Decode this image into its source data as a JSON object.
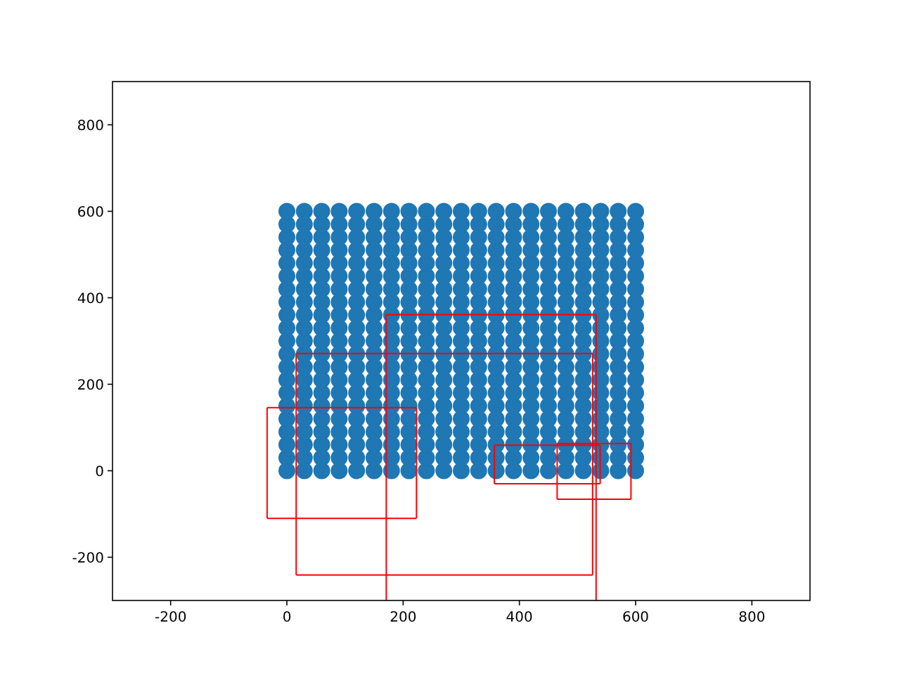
{
  "chart_data": {
    "type": "scatter",
    "xlim": [
      -300,
      900
    ],
    "ylim": [
      -300,
      900
    ],
    "xticks": [
      -200,
      0,
      200,
      400,
      600,
      800
    ],
    "yticks": [
      -200,
      0,
      200,
      400,
      600,
      800
    ],
    "grid": false,
    "marker": "circle",
    "series": [
      {
        "color": "#1f77b4",
        "x": [
          0,
          30,
          60,
          90,
          120,
          150,
          180,
          210,
          240,
          270,
          300,
          330,
          360,
          390,
          420,
          450,
          480,
          510,
          540,
          570,
          600
        ],
        "values": [
          0,
          0,
          0,
          0,
          0,
          0,
          0,
          0,
          0,
          0,
          0,
          0,
          0,
          0,
          0,
          0,
          0,
          0,
          0,
          0,
          0
        ]
      },
      {
        "color": "#1f77b4",
        "x": [
          0,
          30,
          60,
          90,
          120,
          150,
          180,
          210,
          240,
          270,
          300,
          330,
          360,
          390,
          420,
          450,
          480,
          510,
          540,
          570,
          600
        ],
        "values": [
          30,
          30,
          30,
          30,
          30,
          30,
          30,
          30,
          30,
          30,
          30,
          30,
          30,
          30,
          30,
          30,
          30,
          30,
          30,
          30,
          30
        ]
      },
      {
        "color": "#1f77b4",
        "x": [
          0,
          30,
          60,
          90,
          120,
          150,
          180,
          210,
          240,
          270,
          300,
          330,
          360,
          390,
          420,
          450,
          480,
          510,
          540,
          570,
          600
        ],
        "values": [
          60,
          60,
          60,
          60,
          60,
          60,
          60,
          60,
          60,
          60,
          60,
          60,
          60,
          60,
          60,
          60,
          60,
          60,
          60,
          60,
          60
        ]
      },
      {
        "color": "#1f77b4",
        "x": [
          0,
          30,
          60,
          90,
          120,
          150,
          180,
          210,
          240,
          270,
          300,
          330,
          360,
          390,
          420,
          450,
          480,
          510,
          540,
          570,
          600
        ],
        "values": [
          90,
          90,
          90,
          90,
          90,
          90,
          90,
          90,
          90,
          90,
          90,
          90,
          90,
          90,
          90,
          90,
          90,
          90,
          90,
          90,
          90
        ]
      },
      {
        "color": "#1f77b4",
        "x": [
          0,
          30,
          60,
          90,
          120,
          150,
          180,
          210,
          240,
          270,
          300,
          330,
          360,
          390,
          420,
          450,
          480,
          510,
          540,
          570,
          600
        ],
        "values": [
          120,
          120,
          120,
          120,
          120,
          120,
          120,
          120,
          120,
          120,
          120,
          120,
          120,
          120,
          120,
          120,
          120,
          120,
          120,
          120,
          120
        ]
      },
      {
        "color": "#1f77b4",
        "x": [
          0,
          30,
          60,
          90,
          120,
          150,
          180,
          210,
          240,
          270,
          300,
          330,
          360,
          390,
          420,
          450,
          480,
          510,
          540,
          570,
          600
        ],
        "values": [
          150,
          150,
          150,
          150,
          150,
          150,
          150,
          150,
          150,
          150,
          150,
          150,
          150,
          150,
          150,
          150,
          150,
          150,
          150,
          150,
          150
        ]
      },
      {
        "color": "#1f77b4",
        "x": [
          0,
          30,
          60,
          90,
          120,
          150,
          180,
          210,
          240,
          270,
          300,
          330,
          360,
          390,
          420,
          450,
          480,
          510,
          540,
          570,
          600
        ],
        "values": [
          180,
          180,
          180,
          180,
          180,
          180,
          180,
          180,
          180,
          180,
          180,
          180,
          180,
          180,
          180,
          180,
          180,
          180,
          180,
          180,
          180
        ]
      },
      {
        "color": "#1f77b4",
        "x": [
          0,
          30,
          60,
          90,
          120,
          150,
          180,
          210,
          240,
          270,
          300,
          330,
          360,
          390,
          420,
          450,
          480,
          510,
          540,
          570,
          600
        ],
        "values": [
          210,
          210,
          210,
          210,
          210,
          210,
          210,
          210,
          210,
          210,
          210,
          210,
          210,
          210,
          210,
          210,
          210,
          210,
          210,
          210,
          210
        ]
      },
      {
        "color": "#1f77b4",
        "x": [
          0,
          30,
          60,
          90,
          120,
          150,
          180,
          210,
          240,
          270,
          300,
          330,
          360,
          390,
          420,
          450,
          480,
          510,
          540,
          570,
          600
        ],
        "values": [
          240,
          240,
          240,
          240,
          240,
          240,
          240,
          240,
          240,
          240,
          240,
          240,
          240,
          240,
          240,
          240,
          240,
          240,
          240,
          240,
          240
        ]
      },
      {
        "color": "#1f77b4",
        "x": [
          0,
          30,
          60,
          90,
          120,
          150,
          180,
          210,
          240,
          270,
          300,
          330,
          360,
          390,
          420,
          450,
          480,
          510,
          540,
          570,
          600
        ],
        "values": [
          270,
          270,
          270,
          270,
          270,
          270,
          270,
          270,
          270,
          270,
          270,
          270,
          270,
          270,
          270,
          270,
          270,
          270,
          270,
          270,
          270
        ]
      },
      {
        "color": "#1f77b4",
        "x": [
          0,
          30,
          60,
          90,
          120,
          150,
          180,
          210,
          240,
          270,
          300,
          330,
          360,
          390,
          420,
          450,
          480,
          510,
          540,
          570,
          600
        ],
        "values": [
          300,
          300,
          300,
          300,
          300,
          300,
          300,
          300,
          300,
          300,
          300,
          300,
          300,
          300,
          300,
          300,
          300,
          300,
          300,
          300,
          300
        ]
      },
      {
        "color": "#1f77b4",
        "x": [
          0,
          30,
          60,
          90,
          120,
          150,
          180,
          210,
          240,
          270,
          300,
          330,
          360,
          390,
          420,
          450,
          480,
          510,
          540,
          570,
          600
        ],
        "values": [
          330,
          330,
          330,
          330,
          330,
          330,
          330,
          330,
          330,
          330,
          330,
          330,
          330,
          330,
          330,
          330,
          330,
          330,
          330,
          330,
          330
        ]
      },
      {
        "color": "#1f77b4",
        "x": [
          0,
          30,
          60,
          90,
          120,
          150,
          180,
          210,
          240,
          270,
          300,
          330,
          360,
          390,
          420,
          450,
          480,
          510,
          540,
          570,
          600
        ],
        "values": [
          360,
          360,
          360,
          360,
          360,
          360,
          360,
          360,
          360,
          360,
          360,
          360,
          360,
          360,
          360,
          360,
          360,
          360,
          360,
          360,
          360
        ]
      },
      {
        "color": "#1f77b4",
        "x": [
          0,
          30,
          60,
          90,
          120,
          150,
          180,
          210,
          240,
          270,
          300,
          330,
          360,
          390,
          420,
          450,
          480,
          510,
          540,
          570,
          600
        ],
        "values": [
          390,
          390,
          390,
          390,
          390,
          390,
          390,
          390,
          390,
          390,
          390,
          390,
          390,
          390,
          390,
          390,
          390,
          390,
          390,
          390,
          390
        ]
      },
      {
        "color": "#1f77b4",
        "x": [
          0,
          30,
          60,
          90,
          120,
          150,
          180,
          210,
          240,
          270,
          300,
          330,
          360,
          390,
          420,
          450,
          480,
          510,
          540,
          570,
          600
        ],
        "values": [
          420,
          420,
          420,
          420,
          420,
          420,
          420,
          420,
          420,
          420,
          420,
          420,
          420,
          420,
          420,
          420,
          420,
          420,
          420,
          420,
          420
        ]
      },
      {
        "color": "#1f77b4",
        "x": [
          0,
          30,
          60,
          90,
          120,
          150,
          180,
          210,
          240,
          270,
          300,
          330,
          360,
          390,
          420,
          450,
          480,
          510,
          540,
          570,
          600
        ],
        "values": [
          450,
          450,
          450,
          450,
          450,
          450,
          450,
          450,
          450,
          450,
          450,
          450,
          450,
          450,
          450,
          450,
          450,
          450,
          450,
          450,
          450
        ]
      },
      {
        "color": "#1f77b4",
        "x": [
          0,
          30,
          60,
          90,
          120,
          150,
          180,
          210,
          240,
          270,
          300,
          330,
          360,
          390,
          420,
          450,
          480,
          510,
          540,
          570,
          600
        ],
        "values": [
          480,
          480,
          480,
          480,
          480,
          480,
          480,
          480,
          480,
          480,
          480,
          480,
          480,
          480,
          480,
          480,
          480,
          480,
          480,
          480,
          480
        ]
      },
      {
        "color": "#1f77b4",
        "x": [
          0,
          30,
          60,
          90,
          120,
          150,
          180,
          210,
          240,
          270,
          300,
          330,
          360,
          390,
          420,
          450,
          480,
          510,
          540,
          570,
          600
        ],
        "values": [
          510,
          510,
          510,
          510,
          510,
          510,
          510,
          510,
          510,
          510,
          510,
          510,
          510,
          510,
          510,
          510,
          510,
          510,
          510,
          510,
          510
        ]
      },
      {
        "color": "#1f77b4",
        "x": [
          0,
          30,
          60,
          90,
          120,
          150,
          180,
          210,
          240,
          270,
          300,
          330,
          360,
          390,
          420,
          450,
          480,
          510,
          540,
          570,
          600
        ],
        "values": [
          540,
          540,
          540,
          540,
          540,
          540,
          540,
          540,
          540,
          540,
          540,
          540,
          540,
          540,
          540,
          540,
          540,
          540,
          540,
          540,
          540
        ]
      },
      {
        "color": "#1f77b4",
        "x": [
          0,
          30,
          60,
          90,
          120,
          150,
          180,
          210,
          240,
          270,
          300,
          330,
          360,
          390,
          420,
          450,
          480,
          510,
          540,
          570,
          600
        ],
        "values": [
          570,
          570,
          570,
          570,
          570,
          570,
          570,
          570,
          570,
          570,
          570,
          570,
          570,
          570,
          570,
          570,
          570,
          570,
          570,
          570,
          570
        ]
      },
      {
        "color": "#1f77b4",
        "x": [
          0,
          30,
          60,
          90,
          120,
          150,
          180,
          210,
          240,
          270,
          300,
          330,
          360,
          390,
          420,
          450,
          480,
          510,
          540,
          570,
          600
        ],
        "values": [
          600,
          600,
          600,
          600,
          600,
          600,
          600,
          600,
          600,
          600,
          600,
          600,
          600,
          600,
          600,
          600,
          600,
          600,
          600,
          600,
          600
        ]
      },
      {
        "type": "line",
        "marker": "none",
        "color": "#ff0000",
        "x": [
          -34,
          223
        ],
        "values": [
          -110,
          -110
        ]
      },
      {
        "type": "line",
        "marker": "none",
        "color": "#ff0000",
        "x": [
          -34,
          223
        ],
        "values": [
          146,
          146
        ]
      },
      {
        "type": "line",
        "marker": "none",
        "color": "#ff0000",
        "x": [
          -34,
          -34
        ],
        "values": [
          -110,
          146
        ]
      },
      {
        "type": "line",
        "marker": "none",
        "color": "#ff0000",
        "x": [
          223,
          223
        ],
        "values": [
          -110,
          146
        ]
      },
      {
        "type": "line",
        "marker": "none",
        "color": "#ff0000",
        "x": [
          16,
          526
        ],
        "values": [
          -241,
          -241
        ]
      },
      {
        "type": "line",
        "marker": "none",
        "color": "#ff0000",
        "x": [
          16,
          526
        ],
        "values": [
          271,
          271
        ]
      },
      {
        "type": "line",
        "marker": "none",
        "color": "#ff0000",
        "x": [
          16,
          16
        ],
        "values": [
          -241,
          271
        ]
      },
      {
        "type": "line",
        "marker": "none",
        "color": "#ff0000",
        "x": [
          526,
          526
        ],
        "values": [
          -241,
          271
        ]
      },
      {
        "type": "line",
        "marker": "none",
        "color": "#ff0000",
        "x": [
          171,
          532
        ],
        "values": [
          361,
          361
        ]
      },
      {
        "type": "line",
        "marker": "none",
        "color": "#ff0000",
        "x": [
          171,
          171
        ],
        "values": [
          -300,
          361
        ]
      },
      {
        "type": "line",
        "marker": "none",
        "color": "#ff0000",
        "x": [
          532,
          532
        ],
        "values": [
          -300,
          361
        ]
      },
      {
        "type": "line",
        "marker": "none",
        "color": "#ff0000",
        "x": [
          357,
          539
        ],
        "values": [
          -30,
          -30
        ]
      },
      {
        "type": "line",
        "marker": "none",
        "color": "#ff0000",
        "x": [
          357,
          539
        ],
        "values": [
          59,
          59
        ]
      },
      {
        "type": "line",
        "marker": "none",
        "color": "#ff0000",
        "x": [
          357,
          357
        ],
        "values": [
          -30,
          59
        ]
      },
      {
        "type": "line",
        "marker": "none",
        "color": "#ff0000",
        "x": [
          539,
          539
        ],
        "values": [
          -30,
          59
        ]
      },
      {
        "type": "line",
        "marker": "none",
        "color": "#ff0000",
        "x": [
          465,
          592
        ],
        "values": [
          -66,
          -66
        ]
      },
      {
        "type": "line",
        "marker": "none",
        "color": "#ff0000",
        "x": [
          465,
          592
        ],
        "values": [
          63,
          63
        ]
      },
      {
        "type": "line",
        "marker": "none",
        "color": "#ff0000",
        "x": [
          465,
          465
        ],
        "values": [
          -66,
          63
        ]
      },
      {
        "type": "line",
        "marker": "none",
        "color": "#ff0000",
        "x": [
          592,
          592
        ],
        "values": [
          -66,
          63
        ]
      }
    ]
  }
}
